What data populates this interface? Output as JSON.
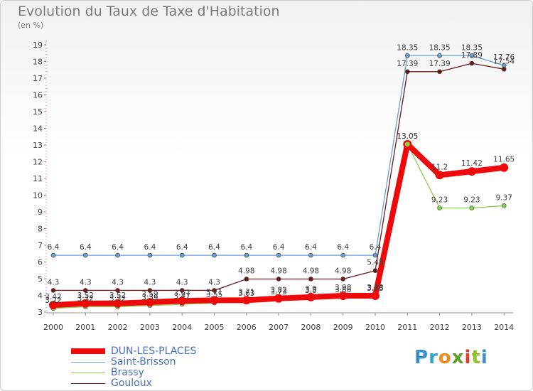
{
  "title": "Evolution du Taux de Taxe d'Habitation",
  "unit_label": "(en %)",
  "logo_text": "Proxiti",
  "logo_colors": [
    "#3a8fd0",
    "#2fa4d8",
    "#f08a1c",
    "#5aa02c",
    "#e23c2c",
    "#8fbf2a",
    "#3a8fd0"
  ],
  "chart_data": {
    "type": "line",
    "x": [
      "2000",
      "2001",
      "2002",
      "2003",
      "2004",
      "2005",
      "2006",
      "2007",
      "2008",
      "2009",
      "2010",
      "2011",
      "2012",
      "2013",
      "2014"
    ],
    "ylim": [
      3,
      19
    ],
    "yticks": [
      3,
      4,
      5,
      6,
      7,
      8,
      9,
      10,
      11,
      12,
      13,
      14,
      15,
      16,
      17,
      18,
      19
    ],
    "grid": false,
    "legend_position": "bottom-left",
    "series": [
      {
        "name": "Saint-Brisson",
        "color": "#6a9ed0",
        "values": [
          6.4,
          6.4,
          6.4,
          6.4,
          6.4,
          6.4,
          6.4,
          6.4,
          6.4,
          6.4,
          6.4,
          18.35,
          18.35,
          18.35,
          17.76
        ],
        "labels": [
          "6.4",
          "6.4",
          "6.4",
          "6.4",
          "6.4",
          "6.4",
          "6.4",
          "6.4",
          "6.4",
          "6.4",
          "6.4",
          "18.35",
          "18.35",
          "18.35",
          "17.76"
        ]
      },
      {
        "name": "Gouloux",
        "color": "#6b1a1a",
        "values": [
          4.3,
          4.3,
          4.3,
          4.3,
          4.3,
          4.3,
          4.98,
          4.98,
          4.98,
          4.98,
          5.48,
          17.39,
          17.39,
          17.89,
          17.54
        ],
        "labels": [
          "4.3",
          "4.3",
          "4.3",
          "4.3",
          "4.3",
          "4.3",
          "4.98",
          "4.98",
          "4.98",
          "4.98",
          "5.48",
          "17.39",
          "17.39",
          "17.89",
          "17.54"
        ]
      },
      {
        "name": "Brassy",
        "color": "#88d050",
        "values": [
          3.22,
          3.32,
          3.32,
          3.39,
          3.47,
          3.55,
          3.63,
          3.73,
          3.8,
          3.86,
          3.93,
          13.05,
          9.23,
          9.23,
          9.37
        ],
        "labels": [
          "3.22",
          "3.32",
          "3.32",
          "3.39",
          "3.47",
          "3.55",
          "3.63",
          "3.73",
          "3.8",
          "3.86",
          "3.93",
          "13.05",
          "9.23",
          "9.23",
          "9.37"
        ]
      },
      {
        "name": "DUN-LES-PLACES",
        "color": "#ee0a0a",
        "values": [
          3.42,
          3.52,
          3.52,
          3.59,
          3.67,
          3.71,
          3.71,
          3.82,
          3.9,
          3.98,
          3.98,
          13.05,
          11.2,
          11.42,
          11.65
        ],
        "labels": [
          "3.42",
          "3.52",
          "3.52",
          "3.59",
          "3.67",
          "3.71",
          "3.71",
          "3.82",
          "3.9",
          "3.98",
          "3.98",
          "13.05",
          "11.2",
          "11.42",
          "11.65"
        ]
      }
    ]
  },
  "legend": [
    "DUN-LES-PLACES",
    "Saint-Brisson",
    "Brassy",
    "Gouloux"
  ]
}
